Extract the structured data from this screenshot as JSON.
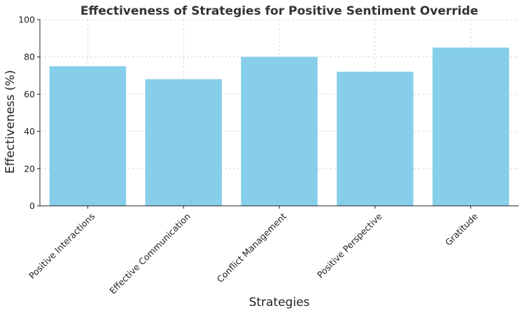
{
  "chart_data": {
    "type": "bar",
    "title": "Effectiveness of Strategies for Positive Sentiment Override",
    "xlabel": "Strategies",
    "ylabel": "Effectiveness (%)",
    "categories": [
      "Positive Interactions",
      "Effective Communication",
      "Conflict Management",
      "Positive Perspective",
      "Gratitude"
    ],
    "values": [
      75,
      68,
      80,
      72,
      85
    ],
    "ylim": [
      0,
      100
    ],
    "yticks": [
      0,
      20,
      40,
      60,
      80,
      100
    ],
    "grid": true,
    "bar_color": "#87ceeb",
    "legend": "none"
  }
}
